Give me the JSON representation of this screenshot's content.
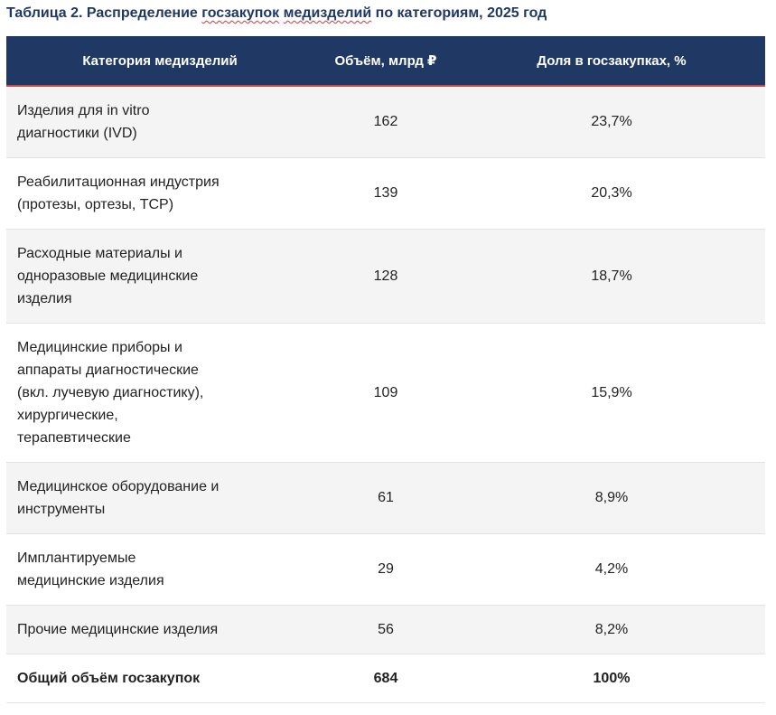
{
  "caption": {
    "prefix": "Таблица 2. Распределение ",
    "squiggled_word": "госзакупок",
    "middle": " ",
    "squiggled_word_2": "медизделий",
    "suffix": " по категориям, 2025 год"
  },
  "table": {
    "headers": [
      "Категория медизделий",
      "Объём, млрд ₽",
      "Доля в госзакупках, %"
    ],
    "rows": [
      {
        "label_lines": [
          "Изделия для in vitro",
          "диагностики (IVD)"
        ],
        "volume": "162",
        "share": "23,7%"
      },
      {
        "label_lines": [
          "Реабилитационная индустрия",
          "(протезы, ортезы, ТСР)"
        ],
        "volume": "139",
        "share": "20,3%"
      },
      {
        "label_lines": [
          "Расходные материалы и",
          "одноразовые медицинские",
          "изделия"
        ],
        "volume": "128",
        "share": "18,7%"
      },
      {
        "label_lines": [
          "Медицинские приборы и",
          "аппараты диагностические",
          "(вкл. лучевую диагностику),",
          "хирургические,",
          "терапевтические"
        ],
        "volume": "109",
        "share": "15,9%"
      },
      {
        "label_lines": [
          "Медицинское оборудование и",
          "инструменты"
        ],
        "volume": "61",
        "share": "8,9%"
      },
      {
        "label_lines": [
          "Имплантируемые",
          "медицинские изделия"
        ],
        "volume": "29",
        "share": "4,2%"
      },
      {
        "label_lines": [
          "Прочие медицинские изделия"
        ],
        "volume": "56",
        "share": "8,2%"
      }
    ],
    "total": {
      "label": "Общий объём госзакупок",
      "volume": "684",
      "share": "100%"
    }
  }
}
